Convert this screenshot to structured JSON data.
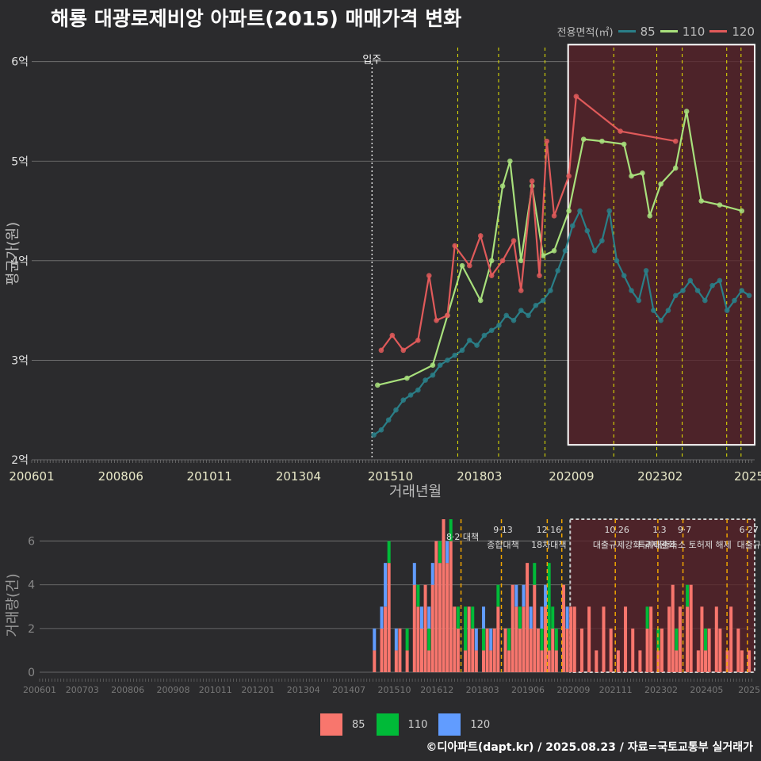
{
  "title": "해룡 대광로제비앙 아파트(2015) 매매가격 변화",
  "footer": "©디아파트(dapt.kr) / 2025.08.23 / 자료=국토교통부 실거래가",
  "colors": {
    "background": "#2b2b2d",
    "grid": "#7a7a7a",
    "s85_line": "#2a7f88",
    "s110_line": "#a8e07c",
    "s120_line": "#e05a5a",
    "b85": "#f8766d",
    "b110": "#00ba38",
    "b120": "#619cff",
    "policy": "#e6e600",
    "policy_bottom": "#f0a500",
    "highlight_fill": "#5a2228"
  },
  "chart_data": [
    {
      "type": "line",
      "title": "해룡 대광로제비앙 아파트(2015) 매매가격 변화",
      "xlabel": "거래년월",
      "ylabel": "평균가(원)",
      "ylim": [
        2,
        6.3
      ],
      "x_range": [
        2006.0,
        2025.65
      ],
      "y_ticks": [
        {
          "v": 2,
          "label": "2억"
        },
        {
          "v": 3,
          "label": "3억"
        },
        {
          "v": 4,
          "label": "4억"
        },
        {
          "v": 5,
          "label": "5억"
        },
        {
          "v": 6,
          "label": "6억"
        }
      ],
      "x_ticks": [
        {
          "v": 2006.0,
          "label": "200601"
        },
        {
          "v": 2008.42,
          "label": "200806"
        },
        {
          "v": 2010.83,
          "label": "201011"
        },
        {
          "v": 2013.25,
          "label": "201304"
        },
        {
          "v": 2015.75,
          "label": "201510"
        },
        {
          "v": 2018.17,
          "label": "201803"
        },
        {
          "v": 2020.67,
          "label": "202009"
        },
        {
          "v": 2023.08,
          "label": "202302"
        },
        {
          "v": 2025.5,
          "label": "2025"
        }
      ],
      "move_in": {
        "x": 2015.25,
        "label": "입주"
      },
      "policy_lines": [
        2017.58,
        2018.69,
        2019.95,
        2021.82,
        2022.99,
        2023.68,
        2024.89,
        2025.28
      ],
      "highlight_range": [
        2020.58,
        2025.65
      ],
      "highlight_ylim": [
        2.15,
        6.17
      ],
      "legend_title": "전용면적(㎡)",
      "series": [
        {
          "name": "85",
          "points": [
            [
              2015.3,
              2.25
            ],
            [
              2015.5,
              2.3
            ],
            [
              2015.7,
              2.4
            ],
            [
              2015.9,
              2.5
            ],
            [
              2016.1,
              2.6
            ],
            [
              2016.3,
              2.65
            ],
            [
              2016.5,
              2.7
            ],
            [
              2016.7,
              2.8
            ],
            [
              2016.9,
              2.85
            ],
            [
              2017.1,
              2.95
            ],
            [
              2017.3,
              3.0
            ],
            [
              2017.5,
              3.05
            ],
            [
              2017.7,
              3.1
            ],
            [
              2017.9,
              3.2
            ],
            [
              2018.1,
              3.15
            ],
            [
              2018.3,
              3.25
            ],
            [
              2018.5,
              3.3
            ],
            [
              2018.7,
              3.35
            ],
            [
              2018.9,
              3.45
            ],
            [
              2019.1,
              3.4
            ],
            [
              2019.3,
              3.5
            ],
            [
              2019.5,
              3.45
            ],
            [
              2019.7,
              3.55
            ],
            [
              2019.9,
              3.6
            ],
            [
              2020.1,
              3.7
            ],
            [
              2020.3,
              3.9
            ],
            [
              2020.5,
              4.1
            ],
            [
              2020.7,
              4.35
            ],
            [
              2020.9,
              4.5
            ],
            [
              2021.1,
              4.3
            ],
            [
              2021.3,
              4.1
            ],
            [
              2021.5,
              4.2
            ],
            [
              2021.7,
              4.5
            ],
            [
              2021.9,
              4.0
            ],
            [
              2022.1,
              3.85
            ],
            [
              2022.3,
              3.7
            ],
            [
              2022.5,
              3.6
            ],
            [
              2022.7,
              3.9
            ],
            [
              2022.9,
              3.5
            ],
            [
              2023.1,
              3.4
            ],
            [
              2023.3,
              3.5
            ],
            [
              2023.5,
              3.65
            ],
            [
              2023.7,
              3.7
            ],
            [
              2023.9,
              3.8
            ],
            [
              2024.1,
              3.7
            ],
            [
              2024.3,
              3.6
            ],
            [
              2024.5,
              3.75
            ],
            [
              2024.7,
              3.8
            ],
            [
              2024.9,
              3.5
            ],
            [
              2025.1,
              3.6
            ],
            [
              2025.3,
              3.7
            ],
            [
              2025.5,
              3.65
            ]
          ]
        },
        {
          "name": "110",
          "points": [
            [
              2015.4,
              2.75
            ],
            [
              2016.2,
              2.82
            ],
            [
              2016.9,
              2.95
            ],
            [
              2017.3,
              3.45
            ],
            [
              2017.7,
              3.95
            ],
            [
              2018.2,
              3.6
            ],
            [
              2018.5,
              4.0
            ],
            [
              2018.8,
              4.75
            ],
            [
              2019.0,
              5.0
            ],
            [
              2019.3,
              4.0
            ],
            [
              2019.6,
              4.75
            ],
            [
              2019.9,
              4.05
            ],
            [
              2020.2,
              4.1
            ],
            [
              2020.6,
              4.5
            ],
            [
              2021.0,
              5.22
            ],
            [
              2021.5,
              5.2
            ],
            [
              2022.1,
              5.17
            ],
            [
              2022.3,
              4.85
            ],
            [
              2022.6,
              4.88
            ],
            [
              2022.8,
              4.45
            ],
            [
              2023.1,
              4.77
            ],
            [
              2023.5,
              4.93
            ],
            [
              2023.8,
              5.5
            ],
            [
              2024.2,
              4.6
            ],
            [
              2024.7,
              4.56
            ],
            [
              2025.3,
              4.5
            ]
          ]
        },
        {
          "name": "120",
          "points": [
            [
              2015.5,
              3.1
            ],
            [
              2015.8,
              3.25
            ],
            [
              2016.1,
              3.1
            ],
            [
              2016.5,
              3.2
            ],
            [
              2016.8,
              3.85
            ],
            [
              2017.0,
              3.4
            ],
            [
              2017.3,
              3.45
            ],
            [
              2017.5,
              4.15
            ],
            [
              2017.9,
              3.95
            ],
            [
              2018.2,
              4.25
            ],
            [
              2018.5,
              3.85
            ],
            [
              2018.8,
              4.0
            ],
            [
              2019.1,
              4.2
            ],
            [
              2019.3,
              3.7
            ],
            [
              2019.6,
              4.8
            ],
            [
              2019.8,
              3.85
            ],
            [
              2020.0,
              5.2
            ],
            [
              2020.2,
              4.45
            ],
            [
              2020.6,
              4.85
            ],
            [
              2020.8,
              5.65
            ],
            [
              2022.0,
              5.3
            ],
            [
              2023.5,
              5.2
            ]
          ]
        }
      ]
    },
    {
      "type": "bar",
      "ylabel": "거래량(건)",
      "ylim": [
        0,
        7
      ],
      "x_range": [
        2006.0,
        2025.65
      ],
      "y_ticks": [
        0,
        2,
        4,
        6
      ],
      "x_ticks": [
        {
          "v": 2006.0,
          "label": "200601"
        },
        {
          "v": 2007.17,
          "label": "200703"
        },
        {
          "v": 2008.42,
          "label": "200806"
        },
        {
          "v": 2009.67,
          "label": "200908"
        },
        {
          "v": 2010.83,
          "label": "201011"
        },
        {
          "v": 2012.0,
          "label": "201201"
        },
        {
          "v": 2013.25,
          "label": "201304"
        },
        {
          "v": 2014.5,
          "label": "201407"
        },
        {
          "v": 2015.75,
          "label": "201510"
        },
        {
          "v": 2016.92,
          "label": "201612"
        },
        {
          "v": 2018.17,
          "label": "201803"
        },
        {
          "v": 2019.42,
          "label": "201906"
        },
        {
          "v": 2020.67,
          "label": "202009"
        },
        {
          "v": 2021.83,
          "label": "202111"
        },
        {
          "v": 2023.08,
          "label": "202302"
        },
        {
          "v": 2024.33,
          "label": "202405"
        },
        {
          "v": 2025.5,
          "label": "2025"
        }
      ],
      "policy_lines": [
        {
          "x": 2017.58,
          "label": "8·2 대책",
          "row": 1
        },
        {
          "x": 2018.69,
          "label": "9·13",
          "label2": "종합대책",
          "row": 0
        },
        {
          "x": 2019.95,
          "label": "12·16",
          "label2": "18차대책",
          "row": 0
        },
        {
          "x": 2020.35,
          "label": "",
          "row": 0
        },
        {
          "x": 2021.82,
          "label": "10.26",
          "label2": "대출규제강화",
          "row": 0
        },
        {
          "x": 2022.99,
          "label": "1.3",
          "label2": "규제완화",
          "row": 0
        },
        {
          "x": 2023.68,
          "label": "9·7",
          "label2": "특례대출축소 토허제 해제",
          "row": 0
        },
        {
          "x": 2024.89,
          "label": "",
          "row": 0
        },
        {
          "x": 2025.45,
          "label": "6·27",
          "label2": "대출규",
          "row": 0
        }
      ],
      "highlight_range": [
        2020.58,
        2025.65
      ],
      "legend": [
        "85",
        "110",
        "120"
      ],
      "bars": [
        {
          "x": 2015.2,
          "a": 1,
          "b": 0,
          "c": 1
        },
        {
          "x": 2015.4,
          "a": 2,
          "b": 0,
          "c": 1
        },
        {
          "x": 2015.5,
          "a": 3,
          "b": 0,
          "c": 2
        },
        {
          "x": 2015.6,
          "a": 5,
          "b": 1,
          "c": 0
        },
        {
          "x": 2015.8,
          "a": 1,
          "b": 0,
          "c": 1
        },
        {
          "x": 2015.9,
          "a": 2,
          "b": 0,
          "c": 0
        },
        {
          "x": 2016.1,
          "a": 1,
          "b": 1,
          "c": 0
        },
        {
          "x": 2016.3,
          "a": 4,
          "b": 0,
          "c": 1
        },
        {
          "x": 2016.4,
          "a": 3,
          "b": 1,
          "c": 0
        },
        {
          "x": 2016.5,
          "a": 2,
          "b": 0,
          "c": 1
        },
        {
          "x": 2016.6,
          "a": 4,
          "b": 0,
          "c": 0
        },
        {
          "x": 2016.7,
          "a": 1,
          "b": 1,
          "c": 1
        },
        {
          "x": 2016.8,
          "a": 4,
          "b": 0,
          "c": 1
        },
        {
          "x": 2016.9,
          "a": 6,
          "b": 0,
          "c": 0
        },
        {
          "x": 2017.0,
          "a": 5,
          "b": 1,
          "c": 0
        },
        {
          "x": 2017.1,
          "a": 7,
          "b": 0,
          "c": 0
        },
        {
          "x": 2017.2,
          "a": 5,
          "b": 0,
          "c": 1
        },
        {
          "x": 2017.3,
          "a": 6,
          "b": 1,
          "c": 0
        },
        {
          "x": 2017.4,
          "a": 3,
          "b": 0,
          "c": 0
        },
        {
          "x": 2017.5,
          "a": 2,
          "b": 1,
          "c": 0
        },
        {
          "x": 2017.7,
          "a": 1,
          "b": 2,
          "c": 0
        },
        {
          "x": 2017.8,
          "a": 3,
          "b": 0,
          "c": 0
        },
        {
          "x": 2017.9,
          "a": 2,
          "b": 1,
          "c": 0
        },
        {
          "x": 2018.0,
          "a": 1,
          "b": 0,
          "c": 1
        },
        {
          "x": 2018.2,
          "a": 1,
          "b": 1,
          "c": 1
        },
        {
          "x": 2018.3,
          "a": 2,
          "b": 0,
          "c": 0
        },
        {
          "x": 2018.4,
          "a": 1,
          "b": 0,
          "c": 1
        },
        {
          "x": 2018.5,
          "a": 2,
          "b": 0,
          "c": 0
        },
        {
          "x": 2018.6,
          "a": 3,
          "b": 1,
          "c": 0
        },
        {
          "x": 2018.8,
          "a": 2,
          "b": 0,
          "c": 0
        },
        {
          "x": 2018.9,
          "a": 1,
          "b": 1,
          "c": 0
        },
        {
          "x": 2019.0,
          "a": 4,
          "b": 0,
          "c": 0
        },
        {
          "x": 2019.1,
          "a": 3,
          "b": 0,
          "c": 1
        },
        {
          "x": 2019.2,
          "a": 2,
          "b": 1,
          "c": 0
        },
        {
          "x": 2019.3,
          "a": 3,
          "b": 0,
          "c": 1
        },
        {
          "x": 2019.4,
          "a": 5,
          "b": 0,
          "c": 0
        },
        {
          "x": 2019.5,
          "a": 2,
          "b": 0,
          "c": 1
        },
        {
          "x": 2019.6,
          "a": 4,
          "b": 1,
          "c": 0
        },
        {
          "x": 2019.7,
          "a": 2,
          "b": 0,
          "c": 0
        },
        {
          "x": 2019.8,
          "a": 1,
          "b": 1,
          "c": 1
        },
        {
          "x": 2019.9,
          "a": 3,
          "b": 0,
          "c": 1
        },
        {
          "x": 2020.0,
          "a": 1,
          "b": 4,
          "c": 0
        },
        {
          "x": 2020.1,
          "a": 2,
          "b": 1,
          "c": 0
        },
        {
          "x": 2020.2,
          "a": 1,
          "b": 1,
          "c": 0
        },
        {
          "x": 2020.4,
          "a": 4,
          "b": 0,
          "c": 0
        },
        {
          "x": 2020.5,
          "a": 2,
          "b": 0,
          "c": 1
        },
        {
          "x": 2020.6,
          "a": 3,
          "b": 0,
          "c": 0
        },
        {
          "x": 2020.7,
          "a": 3,
          "b": 0,
          "c": 0
        },
        {
          "x": 2020.9,
          "a": 2,
          "b": 0,
          "c": 0
        },
        {
          "x": 2021.1,
          "a": 3,
          "b": 0,
          "c": 0
        },
        {
          "x": 2021.3,
          "a": 1,
          "b": 0,
          "c": 0
        },
        {
          "x": 2021.5,
          "a": 3,
          "b": 0,
          "c": 0
        },
        {
          "x": 2021.7,
          "a": 2,
          "b": 0,
          "c": 0
        },
        {
          "x": 2021.9,
          "a": 1,
          "b": 0,
          "c": 0
        },
        {
          "x": 2022.1,
          "a": 3,
          "b": 0,
          "c": 0
        },
        {
          "x": 2022.3,
          "a": 2,
          "b": 0,
          "c": 0
        },
        {
          "x": 2022.5,
          "a": 1,
          "b": 0,
          "c": 0
        },
        {
          "x": 2022.7,
          "a": 2,
          "b": 1,
          "c": 0
        },
        {
          "x": 2022.8,
          "a": 3,
          "b": 0,
          "c": 0
        },
        {
          "x": 2023.0,
          "a": 1,
          "b": 1,
          "c": 0
        },
        {
          "x": 2023.1,
          "a": 2,
          "b": 0,
          "c": 0
        },
        {
          "x": 2023.3,
          "a": 3,
          "b": 0,
          "c": 0
        },
        {
          "x": 2023.4,
          "a": 4,
          "b": 0,
          "c": 0
        },
        {
          "x": 2023.5,
          "a": 1,
          "b": 1,
          "c": 0
        },
        {
          "x": 2023.6,
          "a": 3,
          "b": 0,
          "c": 0
        },
        {
          "x": 2023.8,
          "a": 3,
          "b": 1,
          "c": 0
        },
        {
          "x": 2023.9,
          "a": 4,
          "b": 0,
          "c": 0
        },
        {
          "x": 2024.1,
          "a": 1,
          "b": 0,
          "c": 0
        },
        {
          "x": 2024.2,
          "a": 3,
          "b": 0,
          "c": 0
        },
        {
          "x": 2024.3,
          "a": 1,
          "b": 1,
          "c": 0
        },
        {
          "x": 2024.4,
          "a": 2,
          "b": 0,
          "c": 0
        },
        {
          "x": 2024.6,
          "a": 3,
          "b": 0,
          "c": 0
        },
        {
          "x": 2024.7,
          "a": 2,
          "b": 0,
          "c": 0
        },
        {
          "x": 2024.9,
          "a": 1,
          "b": 0,
          "c": 0
        },
        {
          "x": 2025.0,
          "a": 3,
          "b": 0,
          "c": 0
        },
        {
          "x": 2025.2,
          "a": 2,
          "b": 0,
          "c": 0
        },
        {
          "x": 2025.3,
          "a": 1,
          "b": 0,
          "c": 0
        },
        {
          "x": 2025.5,
          "a": 1,
          "b": 0,
          "c": 0
        }
      ]
    }
  ]
}
